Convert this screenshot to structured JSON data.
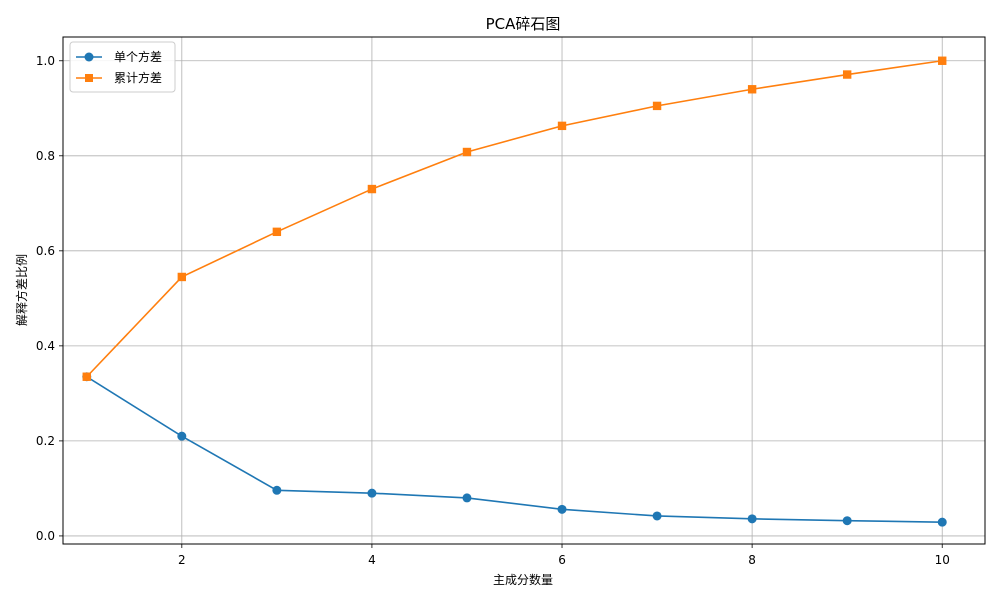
{
  "chart_data": {
    "type": "line",
    "title": "PCA碎石图",
    "xlabel": "主成分数量",
    "ylabel": "解释方差比例",
    "x": [
      1,
      2,
      3,
      4,
      5,
      6,
      7,
      8,
      9,
      10
    ],
    "xlim": [
      0.75,
      10.45
    ],
    "ylim": [
      -0.017,
      1.05
    ],
    "xticks": [
      2,
      4,
      6,
      8,
      10
    ],
    "xtick_labels": [
      "2",
      "4",
      "6",
      "8",
      "10"
    ],
    "yticks": [
      0.0,
      0.2,
      0.4,
      0.6,
      0.8,
      1.0
    ],
    "ytick_labels": [
      "0.0",
      "0.2",
      "0.4",
      "0.6",
      "0.8",
      "1.0"
    ],
    "grid": true,
    "legend_position": "top-left",
    "series": [
      {
        "name": "单个方差",
        "color": "#1f77b4",
        "marker": "circle",
        "values": [
          0.335,
          0.21,
          0.096,
          0.09,
          0.08,
          0.056,
          0.042,
          0.036,
          0.032,
          0.029
        ]
      },
      {
        "name": "累计方差",
        "color": "#ff7f0e",
        "marker": "square",
        "values": [
          0.335,
          0.545,
          0.64,
          0.73,
          0.808,
          0.863,
          0.905,
          0.94,
          0.971,
          1.0
        ]
      }
    ]
  }
}
